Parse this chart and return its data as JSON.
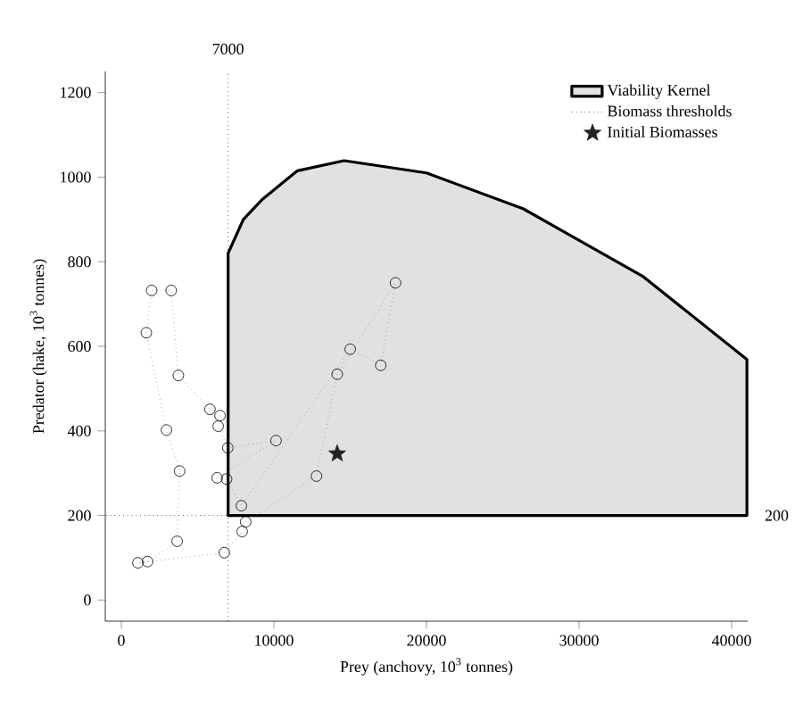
{
  "chart_data": {
    "type": "line",
    "xlabel": "Prey (anchovy, 10$^{3}$ tonnes)",
    "ylabel": "Predator (hake, 10$^{3}$ tonnes)",
    "xlim": [
      -1050,
      41050
    ],
    "ylim": [
      -50,
      1250
    ],
    "xticks": [
      0,
      10000,
      20000,
      30000,
      40000
    ],
    "yticks": [
      0,
      200,
      400,
      600,
      800,
      1000,
      1200
    ],
    "grid": false,
    "legend": "top right",
    "series": [
      {
        "name": "Viability Kernel",
        "type": "area",
        "color": "#e0e1e3",
        "x": [
          7000,
          7000,
          8000,
          9200,
          11540,
          14600,
          20000,
          26350,
          34150,
          41000,
          41000,
          7000
        ],
        "values": [
          200,
          820,
          900,
          946,
          1015,
          1039,
          1010,
          925,
          766,
          569,
          200,
          200
        ]
      },
      {
        "name": "Biomass thresholds",
        "type": "line",
        "line_style": "dotted",
        "marker": "none",
        "color": "#000000",
        "x": [
          7000,
          7000,
          null,
          -1000,
          7000
        ],
        "values": [
          -50,
          1250,
          null,
          200,
          200
        ]
      },
      {
        "type": "line",
        "line_style": "dotted",
        "marker": "circle",
        "color": "#777777",
        "x": [
          6470,
          5810,
          3740,
          3270,
          1990,
          1640,
          2960,
          3820,
          3660,
          1720,
          1090,
          6750,
          7920,
          8150,
          12790,
          14150,
          17970,
          17000,
          15000,
          7870,
          6900,
          6280,
          10140,
          6980,
          6350
        ],
        "values": [
          436,
          451,
          531,
          732,
          732,
          632,
          402,
          305,
          139,
          91,
          88,
          112,
          162,
          185,
          293,
          534,
          750,
          555,
          593,
          223,
          286,
          289,
          377,
          360,
          411
        ]
      },
      {
        "name": "Initial Biomasses",
        "type": "scatter",
        "marker": "star",
        "color": "#222222",
        "x": [
          14150
        ],
        "values": [
          346
        ]
      }
    ],
    "annotations": [
      {
        "text": "7000",
        "x": 7000,
        "y": 1250
      },
      {
        "text": "200",
        "x": 41050,
        "y": 200
      }
    ]
  }
}
